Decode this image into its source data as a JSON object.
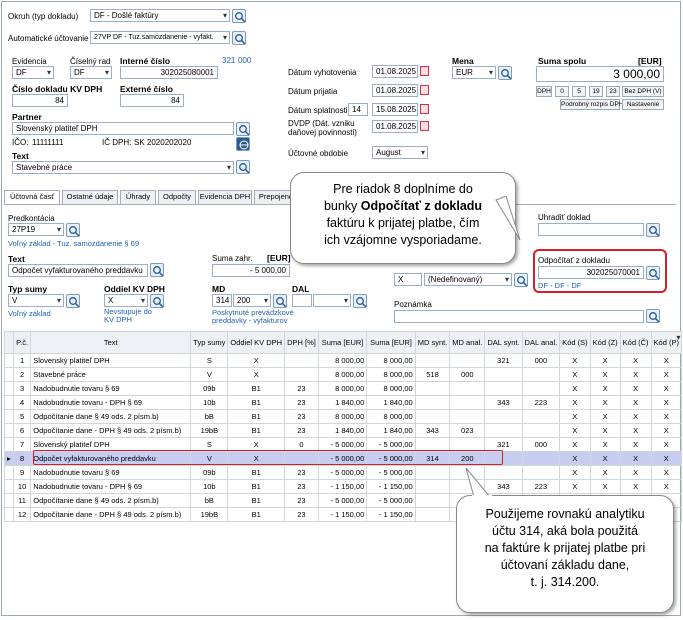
{
  "header": {
    "okruh_label": "Okruh (typ dokladu)",
    "okruh_value": "DF - Došlé faktúry",
    "auto_label": "Automatické účtovanie",
    "auto_value": "27VP DF - Tuz.samozdanenie - vyfakt."
  },
  "doc": {
    "evidencia_label": "Evidencia",
    "evidencia_value": "DF",
    "ciselny_rad_label": "Číselný rad",
    "ciselny_rad_value": "DF",
    "interne_cislo_label": "Interné číslo",
    "interne_cislo_value": "302025080001",
    "counter_a": "321",
    "counter_b": "000",
    "kvdph_label": "Číslo dokladu KV DPH",
    "kvdph_value": "84",
    "externe_label": "Externé číslo",
    "externe_value": "84"
  },
  "partner": {
    "label": "Partner",
    "value": "Slovenský platiteľ DPH",
    "ico_label": "IČO:",
    "ico_value": "11111111",
    "icdph_label": "IČ DPH:",
    "icdph_value": "SK 2020202020"
  },
  "text": {
    "label": "Text",
    "value": "Stavebné práce"
  },
  "dates": {
    "vyhotovenia_label": "Dátum vyhotovenia",
    "vyhotovenia_value": "01.08.2025",
    "prijatia_label": "Dátum prijatia",
    "prijatia_value": "01.08.2025",
    "splatnosti_label": "Dátum splatnosti",
    "splatnosti_days": "14",
    "splatnosti_value": "15.08.2025",
    "dvdp_label": "DVDP (Dát. vzniku daňovej povinnosti)",
    "dvdp_value": "01.08.2025",
    "obdobie_label": "Účtovné obdobie",
    "obdobie_value": "August"
  },
  "currency": {
    "label": "Mena",
    "value": "EUR"
  },
  "total": {
    "label": "Suma spolu",
    "unit": "[EUR]",
    "value": "3 000,00",
    "buttons": [
      "DPH",
      "0",
      "5",
      "19",
      "23",
      "Bez DPH (V)"
    ],
    "detail_button": "Podrobný rozpis DPH",
    "settings_button": "Nastavenie"
  },
  "tabs": [
    "Účtovná časť",
    "Ostatné údaje",
    "Úhrady",
    "Odpočty",
    "Evidencia DPH",
    "Prepojené"
  ],
  "line": {
    "predkontacia_label": "Predkontácia",
    "predkontacia_value": "27P19",
    "predkontacia_hint": "Voľný základ - Tuz. samozdanenie § 69",
    "text_label": "Text",
    "text_value": "Odpočet vyfakturovaného preddavku",
    "suma_label": "Suma zahr.",
    "eur_label": "[EUR]",
    "suma_value": "- 5 000,00",
    "typ_label": "Typ sumy",
    "typ_value": "V",
    "typ_hint": "Voľný základ",
    "oddiel_label": "Oddiel KV DPH",
    "oddiel_value": "X",
    "oddiel_hint": "Nevstupuje do KV DPH",
    "md_label": "MD",
    "md_value": "314",
    "md_anal_value": "200",
    "md_hint": "Poskytnuté prevádzkové preddavky - vyfakturov",
    "dal_label": "DAL",
    "nedef_x": "X",
    "nedef_value": "(Nedefinovaný)",
    "uhradit_label": "Uhradiť doklad",
    "odpocitat_label": "Odpočítať z dokladu",
    "odpocitat_value": "302025070001",
    "odpocitat_hint": "DF - DF - DF",
    "poznamka_label": "Poznámka"
  },
  "table": {
    "headers": [
      "P.č.",
      "Text",
      "Typ sumy",
      "Oddiel KV DPH",
      "DPH [%]",
      "Suma [EUR]",
      "Suma [EUR]",
      "MD synt.",
      "MD anal.",
      "DAL synt.",
      "DAL anal.",
      "Kód (S)",
      "Kód (Z)",
      "Kód (Č)",
      "Kód (P)"
    ],
    "rows": [
      [
        "1",
        "Slovenský platiteľ DPH",
        "S",
        "X",
        "",
        "8 000,00",
        "8 000,00",
        "",
        "",
        "321",
        "000",
        "X",
        "X",
        "X",
        "X"
      ],
      [
        "2",
        "Stavebné práce",
        "V",
        "X",
        "",
        "8 000,00",
        "8 000,00",
        "518",
        "000",
        "",
        "",
        "X",
        "X",
        "X",
        "X"
      ],
      [
        "3",
        "Nadobudnutie tovaru § 69",
        "09b",
        "B1",
        "23",
        "8 000,00",
        "8 000,00",
        "",
        "",
        "",
        "",
        "X",
        "X",
        "X",
        "X"
      ],
      [
        "4",
        "Nadobudnutie tovaru - DPH § 69",
        "10b",
        "B1",
        "23",
        "1 840,00",
        "1 840,00",
        "",
        "",
        "343",
        "223",
        "X",
        "X",
        "X",
        "X"
      ],
      [
        "5",
        "Odpočítanie dane § 49 ods. 2 písm.b)",
        "bB",
        "B1",
        "23",
        "8 000,00",
        "8 000,00",
        "",
        "",
        "",
        "",
        "X",
        "X",
        "X",
        "X"
      ],
      [
        "6",
        "Odpočítanie dane - DPH § 49 ods. 2 písm.b)",
        "19bB",
        "B1",
        "23",
        "1 840,00",
        "1 840,00",
        "343",
        "023",
        "",
        "",
        "X",
        "X",
        "X",
        "X"
      ],
      [
        "7",
        "Slovenský platiteľ DPH",
        "S",
        "X",
        "0",
        "- 5 000,00",
        "- 5 000,00",
        "",
        "",
        "321",
        "000",
        "X",
        "X",
        "X",
        "X"
      ],
      [
        "8",
        "Odpočet vyfakturovaného preddavku",
        "V",
        "X",
        "",
        "- 5 000,00",
        "- 5 000,00",
        "314",
        "200",
        "",
        "",
        "X",
        "X",
        "X",
        "X"
      ],
      [
        "9",
        "Nadobudnutie tovaru § 69",
        "09b",
        "B1",
        "23",
        "- 5 000,00",
        "- 5 000,00",
        "",
        "",
        "",
        "",
        "X",
        "X",
        "X",
        "X"
      ],
      [
        "10",
        "Nadobudnutie tovaru - DPH § 69",
        "10b",
        "B1",
        "23",
        "- 1 150,00",
        "- 1 150,00",
        "",
        "",
        "343",
        "223",
        "X",
        "X",
        "X",
        "X"
      ],
      [
        "11",
        "Odpočítanie dane § 49 ods. 2 písm.b)",
        "bB",
        "B1",
        "23",
        "- 5 000,00",
        "- 5 000,00",
        "",
        "",
        "",
        "",
        "X",
        "X",
        "X",
        "X"
      ],
      [
        "12",
        "Odpočítanie dane - DPH § 49 ods. 2 písm.b)",
        "19bB",
        "B1",
        "23",
        "- 1 150,00",
        "- 1 150,00",
        "",
        "",
        "",
        "",
        "X",
        "X",
        "X",
        "X"
      ]
    ]
  },
  "callouts": {
    "top": [
      "Pre riadok 8 doplníme do",
      "bunky ",
      "Odpočítať z dokladu",
      " faktúru k prijatej platbe, čím",
      "ich vzájomne vysporiadame."
    ],
    "bottom": [
      "Použijeme rovnakú analytiku",
      "účtu 314, aká bola použitá",
      "na faktúre k prijatej platbe pri",
      "účtovaní základu dane,",
      "t. j. 314.200."
    ]
  },
  "colors": {
    "accent": "#1e5fb4",
    "highlight": "#d21f2a",
    "selected_row": "#c7cdf0"
  }
}
